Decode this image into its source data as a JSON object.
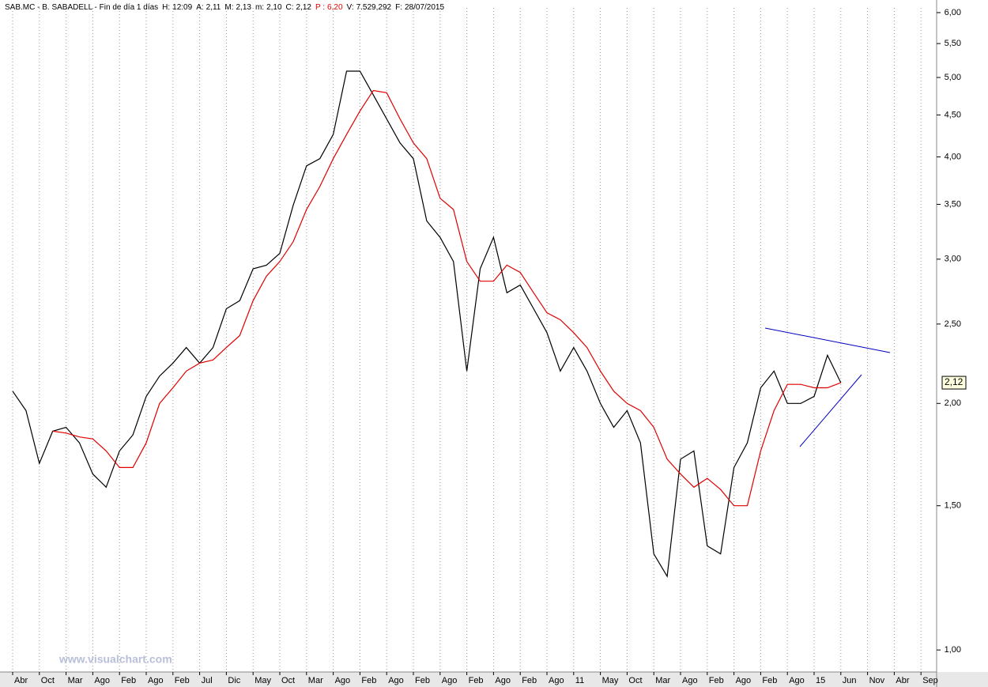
{
  "chart_data": {
    "type": "line",
    "header": {
      "symbol": "SAB.MC - B. SABADELL - Fin de día 1 días",
      "fields": [
        {
          "label": "H:",
          "value": "12:09"
        },
        {
          "label": "A:",
          "value": "2,11"
        },
        {
          "label": "M:",
          "value": "2,13"
        },
        {
          "label": "m:",
          "value": "2,10"
        },
        {
          "label": "C:",
          "value": "2,12"
        },
        {
          "label": "P :",
          "value": "6,20",
          "color": "#e00000"
        },
        {
          "label": "V:",
          "value": "7.529,292"
        },
        {
          "label": "F:",
          "value": "28/07/2015"
        }
      ]
    },
    "watermark": "www.visualchart.com",
    "last_value": {
      "value": 2.12,
      "label": "2,12"
    },
    "log_scale": true,
    "grid": true,
    "categories": [
      "Abr",
      null,
      "Oct",
      null,
      "Mar",
      null,
      "Ago",
      null,
      "Feb",
      null,
      "Ago",
      null,
      "Feb",
      null,
      "Jul",
      null,
      "Dic",
      null,
      "May",
      null,
      "Oct",
      null,
      "Mar",
      null,
      "Ago",
      null,
      "Feb",
      null,
      "Ago",
      null,
      "Feb",
      null,
      "Ago",
      null,
      "Feb",
      null,
      "Ago",
      null,
      "Feb",
      null,
      "Ago",
      null,
      "11",
      null,
      "May",
      null,
      "Oct",
      null,
      "Mar",
      null,
      "Ago",
      null,
      "Feb",
      null,
      "Ago",
      null,
      "Feb",
      null,
      "Ago",
      null,
      "15",
      null,
      "Jun",
      null,
      "Nov",
      null,
      "Abr",
      null,
      "Sep"
    ],
    "series": [
      {
        "name": "Precio",
        "color": "#000000",
        "values": [
          2.07,
          1.96,
          1.69,
          1.85,
          1.87,
          1.79,
          1.64,
          1.58,
          1.75,
          1.83,
          2.04,
          2.16,
          2.24,
          2.34,
          2.24,
          2.34,
          2.61,
          2.67,
          2.92,
          2.95,
          3.05,
          3.49,
          3.9,
          3.98,
          4.26,
          5.09,
          5.09,
          4.76,
          4.45,
          4.16,
          3.98,
          3.34,
          3.19,
          2.98,
          2.19,
          2.92,
          3.19,
          2.73,
          2.79,
          2.61,
          2.44,
          2.19,
          2.34,
          2.19,
          2.0,
          1.87,
          1.96,
          1.79,
          1.31,
          1.23,
          1.71,
          1.75,
          1.34,
          1.31,
          1.67,
          1.79,
          2.09,
          2.19,
          2.0,
          2.0,
          2.04,
          2.29,
          2.12,
          null,
          null,
          null,
          null,
          null,
          null
        ]
      },
      {
        "name": "Media",
        "color": "#e00000",
        "values": [
          null,
          null,
          null,
          1.85,
          1.84,
          1.82,
          1.81,
          1.75,
          1.67,
          1.67,
          1.79,
          2.0,
          2.09,
          2.19,
          2.24,
          2.26,
          2.34,
          2.42,
          2.67,
          2.86,
          2.98,
          3.15,
          3.45,
          3.68,
          3.98,
          4.26,
          4.55,
          4.82,
          4.79,
          4.45,
          4.16,
          3.98,
          3.56,
          3.45,
          2.98,
          2.82,
          2.82,
          2.95,
          2.89,
          2.73,
          2.58,
          2.53,
          2.44,
          2.34,
          2.19,
          2.07,
          2.0,
          1.96,
          1.87,
          1.71,
          1.64,
          1.58,
          1.62,
          1.57,
          1.5,
          1.5,
          1.75,
          1.96,
          2.11,
          2.11,
          2.09,
          2.09,
          2.12,
          null,
          null,
          null,
          null,
          null,
          null
        ]
      }
    ],
    "ylim": [
      0.94,
      6.08
    ],
    "yticks": [
      {
        "value": 1.0,
        "label": "1,00"
      },
      {
        "value": 1.5,
        "label": "1,50"
      },
      {
        "value": 2.0,
        "label": "2,00"
      },
      {
        "value": 2.5,
        "label": "2,50"
      },
      {
        "value": 3.0,
        "label": "3,00"
      },
      {
        "value": 3.5,
        "label": "3,50"
      },
      {
        "value": 4.0,
        "label": "4,00"
      },
      {
        "value": 4.5,
        "label": "4,50"
      },
      {
        "value": 5.0,
        "label": "5,00"
      },
      {
        "value": 5.5,
        "label": "5,50"
      },
      {
        "value": 6.0,
        "label": "6,00"
      }
    ]
  }
}
